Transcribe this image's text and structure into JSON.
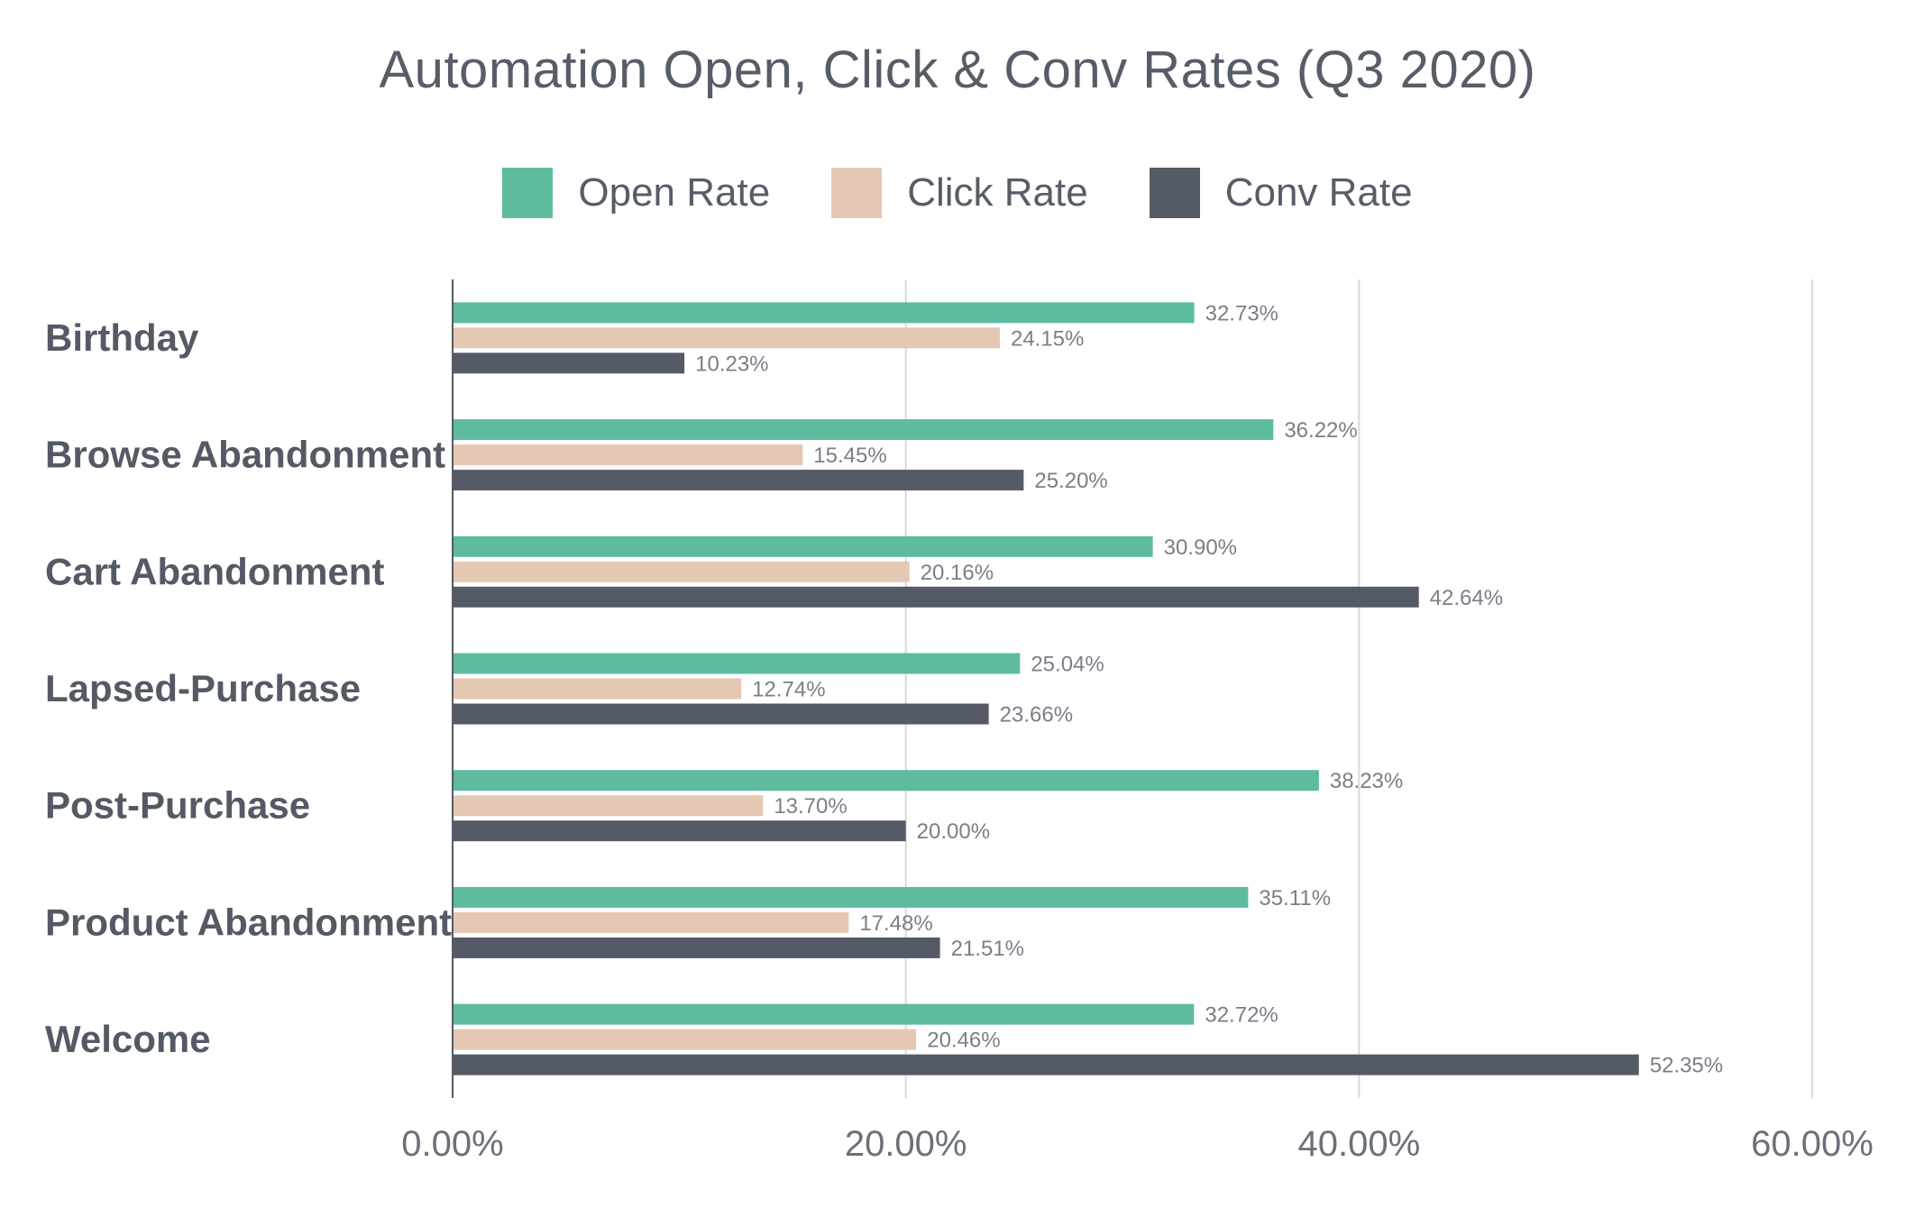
{
  "chart_data": {
    "type": "bar",
    "orientation": "horizontal",
    "title": "Automation Open, Click & Conv Rates (Q3 2020)",
    "categories": [
      "Birthday",
      "Browse Abandonment",
      "Cart Abandonment",
      "Lapsed-Purchase",
      "Post-Purchase",
      "Product Abandonment",
      "Welcome"
    ],
    "series": [
      {
        "name": "Open Rate",
        "color": "#5ebb9f",
        "values": [
          32.73,
          36.22,
          30.9,
          25.04,
          38.23,
          35.11,
          32.72
        ],
        "labels": [
          "32.73%",
          "36.22%",
          "30.90%",
          "25.04%",
          "38.23%",
          "35.11%",
          "32.72%"
        ]
      },
      {
        "name": "Click Rate",
        "color": "#e5c8b3",
        "values": [
          24.15,
          15.45,
          20.16,
          12.74,
          13.7,
          17.48,
          20.46
        ],
        "labels": [
          "24.15%",
          "15.45%",
          "20.16%",
          "12.74%",
          "13.70%",
          "17.48%",
          "20.46%"
        ]
      },
      {
        "name": "Conv Rate",
        "color": "#555b66",
        "values": [
          10.23,
          25.2,
          42.64,
          23.66,
          20.0,
          21.51,
          52.35
        ],
        "labels": [
          "10.23%",
          "25.20%",
          "42.64%",
          "23.66%",
          "20.00%",
          "21.51%",
          "52.35%"
        ]
      }
    ],
    "xlim": [
      0,
      60
    ],
    "xticks": [
      0,
      20,
      40,
      60
    ],
    "xtick_labels": [
      "0.00%",
      "20.00%",
      "40.00%",
      "60.00%"
    ],
    "grid": true,
    "legend": "top-center"
  }
}
